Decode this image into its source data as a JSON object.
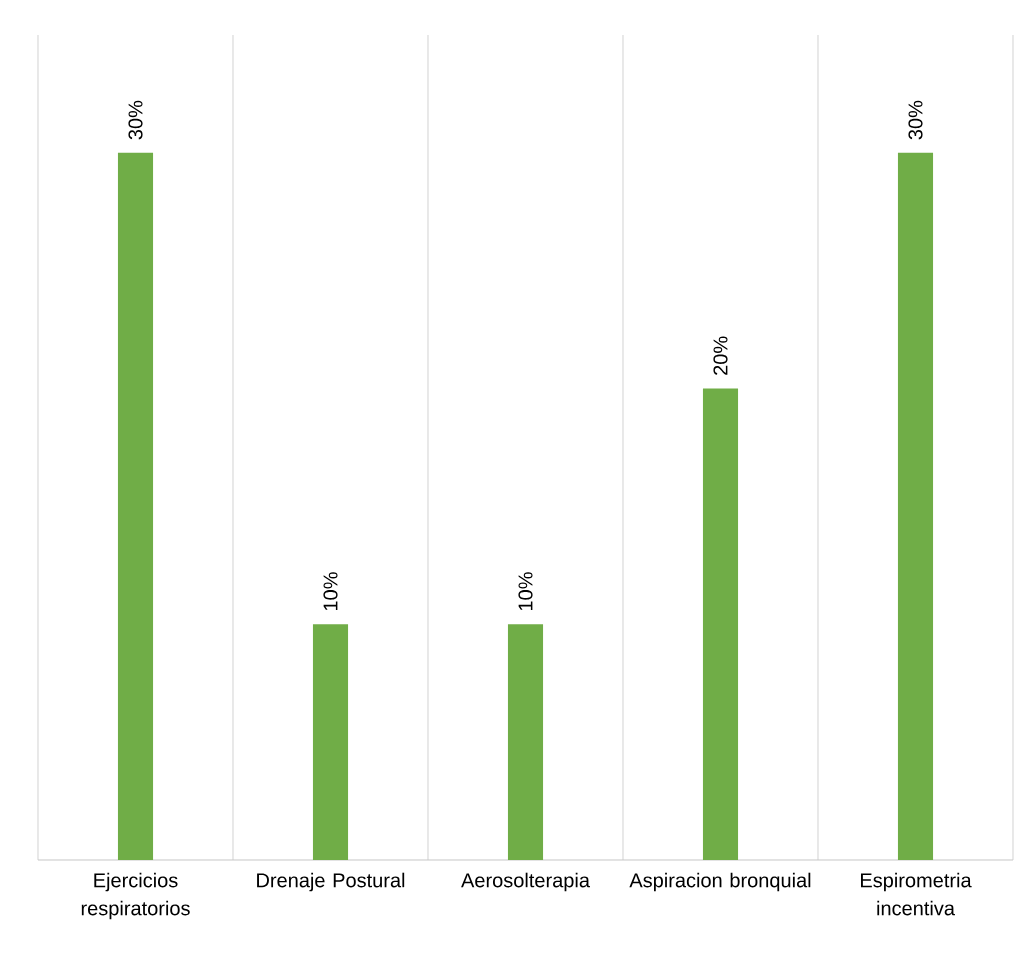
{
  "chart_data": {
    "type": "bar",
    "categories": [
      "Ejercicios respiratorios",
      "Drenaje Postural",
      "Aerosolterapia",
      "Aspiracion bronquial",
      "Espirometria incentiva"
    ],
    "values": [
      30,
      10,
      10,
      20,
      30
    ],
    "value_labels": [
      "30%",
      "10%",
      "10%",
      "20%",
      "30%"
    ],
    "color": "#70ad47",
    "ylim": [
      0,
      35
    ],
    "grid": "x"
  }
}
